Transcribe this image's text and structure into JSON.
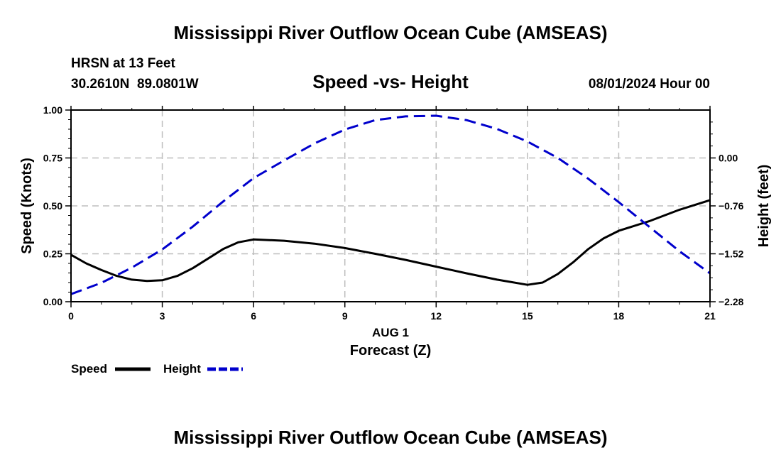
{
  "header": {
    "title_top": "Mississippi River Outflow Ocean Cube (AMSEAS)",
    "station": "HRSN at 13 Feet",
    "coords": "30.2610N  89.0801W",
    "subtitle": "Speed -vs- Height",
    "datetime": "08/01/2024 Hour 00",
    "title_bottom": "Mississippi River Outflow Ocean Cube (AMSEAS)"
  },
  "colors": {
    "speed": "#000000",
    "height": "#0000cc",
    "grid": "#bdbdbd"
  },
  "chart_data": {
    "type": "line",
    "title": "Speed -vs- Height",
    "xlabel": "Forecast (Z)",
    "xlabel_date": "AUG 1",
    "ylabel": "Speed (Knots)",
    "y2label": "Height (feet)",
    "xlim": [
      0,
      21
    ],
    "ylim": [
      0,
      1
    ],
    "y2lim": [
      -2.28,
      0.76
    ],
    "xticks": [
      0,
      3,
      6,
      9,
      12,
      15,
      18,
      21
    ],
    "xtick_labels": [
      "0",
      "3",
      "6",
      "9",
      "12",
      "15",
      "18",
      "21"
    ],
    "yticks": [
      0,
      0.25,
      0.5,
      0.75,
      1.0
    ],
    "ytick_labels": [
      "0.00",
      "0.25",
      "0.50",
      "0.75",
      "1.00"
    ],
    "y2ticks": [
      -2.28,
      -1.52,
      -0.76,
      0.0
    ],
    "y2tick_labels": [
      "−2.28",
      "−1.52",
      "−0.76",
      "0.00"
    ],
    "grid": true,
    "series": [
      {
        "name": "Speed",
        "axis": "left",
        "style": "solid",
        "x": [
          0,
          0.5,
          1,
          1.5,
          2,
          2.5,
          3,
          3.5,
          4,
          4.5,
          5,
          5.5,
          6,
          7,
          8,
          9,
          10,
          11,
          12,
          13,
          14,
          15,
          15.5,
          16,
          16.5,
          17,
          17.5,
          18,
          19,
          20,
          21
        ],
        "values": [
          0.245,
          0.2,
          0.165,
          0.135,
          0.115,
          0.108,
          0.112,
          0.135,
          0.175,
          0.225,
          0.275,
          0.31,
          0.325,
          0.318,
          0.303,
          0.28,
          0.25,
          0.218,
          0.183,
          0.148,
          0.115,
          0.088,
          0.1,
          0.145,
          0.205,
          0.275,
          0.33,
          0.37,
          0.42,
          0.48,
          0.53
        ]
      },
      {
        "name": "Height",
        "axis": "right",
        "style": "dashed",
        "x": [
          0,
          1,
          2,
          3,
          4,
          5,
          6,
          7,
          8,
          9,
          10,
          11,
          12,
          13,
          14,
          15,
          16,
          17,
          18,
          19,
          20,
          21
        ],
        "values": [
          -2.16,
          -1.98,
          -1.74,
          -1.45,
          -1.09,
          -0.69,
          -0.32,
          -0.04,
          0.23,
          0.45,
          0.6,
          0.66,
          0.67,
          0.6,
          0.46,
          0.26,
          0.0,
          -0.33,
          -0.7,
          -1.09,
          -1.48,
          -1.83
        ]
      }
    ],
    "legend": [
      {
        "label": "Speed",
        "style": "solid"
      },
      {
        "label": "Height",
        "style": "dashed"
      }
    ]
  }
}
